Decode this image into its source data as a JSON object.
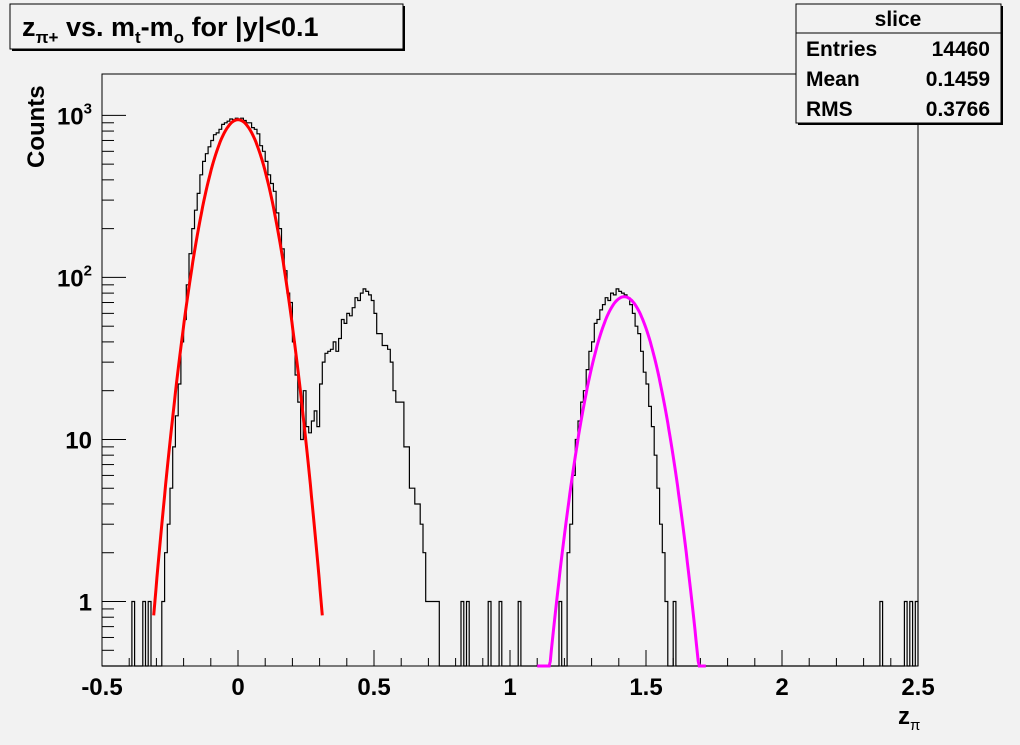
{
  "title": {
    "main": "z",
    "sub": "π+",
    "mid": " vs. m",
    "sub2": "t",
    "dash": "-m",
    "sub3": "o",
    "tail": " for |y|<0.1"
  },
  "stats": {
    "name": "slice",
    "rows": [
      {
        "label": "Entries",
        "value": "14460"
      },
      {
        "label": "Mean",
        "value": "0.1459"
      },
      {
        "label": "RMS",
        "value": "0.3766"
      }
    ]
  },
  "colors": {
    "histogram": "#000000",
    "fit_pi": "#ff0000",
    "fit_p": "#ff00ff",
    "background": "#f2f2f2"
  },
  "chart_data": {
    "type": "line",
    "title": "zπ+ vs. mt-mo for |y|<0.1",
    "xlabel": "zπ",
    "ylabel": "Counts",
    "xlim": [
      -0.5,
      2.5
    ],
    "ylog": true,
    "ymin": 0.4,
    "ymax": 1800,
    "grid": false,
    "x_ticks": [
      {
        "value": -0.5,
        "label": "-0.5"
      },
      {
        "value": 0,
        "label": "0"
      },
      {
        "value": 0.5,
        "label": "0.5"
      },
      {
        "value": 1,
        "label": "1"
      },
      {
        "value": 1.5,
        "label": "1.5"
      },
      {
        "value": 2,
        "label": "2"
      },
      {
        "value": 2.5,
        "label": "2.5"
      }
    ],
    "y_ticks": [
      {
        "value": 1,
        "base": "1",
        "exp": ""
      },
      {
        "value": 10,
        "base": "10",
        "exp": ""
      },
      {
        "value": 100,
        "base": "10",
        "exp": "2"
      },
      {
        "value": 1000,
        "base": "10",
        "exp": "3"
      }
    ],
    "histogram": {
      "name": "slice",
      "bin_width": 0.01,
      "bins": [
        [
          -0.39,
          1
        ],
        [
          -0.35,
          1
        ],
        [
          -0.33,
          1
        ],
        [
          -0.28,
          1
        ],
        [
          -0.27,
          2
        ],
        [
          -0.26,
          3
        ],
        [
          -0.25,
          5
        ],
        [
          -0.24,
          9
        ],
        [
          -0.23,
          14
        ],
        [
          -0.22,
          22
        ],
        [
          -0.21,
          40
        ],
        [
          -0.2,
          55
        ],
        [
          -0.19,
          90
        ],
        [
          -0.18,
          140
        ],
        [
          -0.17,
          200
        ],
        [
          -0.16,
          260
        ],
        [
          -0.15,
          330
        ],
        [
          -0.14,
          430
        ],
        [
          -0.13,
          520
        ],
        [
          -0.12,
          580
        ],
        [
          -0.11,
          640
        ],
        [
          -0.1,
          700
        ],
        [
          -0.09,
          760
        ],
        [
          -0.08,
          780
        ],
        [
          -0.07,
          820
        ],
        [
          -0.06,
          880
        ],
        [
          -0.05,
          900
        ],
        [
          -0.04,
          920
        ],
        [
          -0.03,
          950
        ],
        [
          -0.02,
          940
        ],
        [
          -0.01,
          960
        ],
        [
          0.0,
          950
        ],
        [
          0.01,
          960
        ],
        [
          0.02,
          930
        ],
        [
          0.03,
          900
        ],
        [
          0.04,
          900
        ],
        [
          0.05,
          840
        ],
        [
          0.06,
          820
        ],
        [
          0.07,
          770
        ],
        [
          0.08,
          650
        ],
        [
          0.09,
          600
        ],
        [
          0.1,
          520
        ],
        [
          0.11,
          430
        ],
        [
          0.12,
          380
        ],
        [
          0.13,
          340
        ],
        [
          0.14,
          250
        ],
        [
          0.15,
          200
        ],
        [
          0.16,
          150
        ],
        [
          0.17,
          110
        ],
        [
          0.18,
          80
        ],
        [
          0.19,
          70
        ],
        [
          0.2,
          40
        ],
        [
          0.21,
          25
        ],
        [
          0.22,
          17
        ],
        [
          0.23,
          10
        ],
        [
          0.24,
          20
        ],
        [
          0.25,
          12
        ],
        [
          0.26,
          11
        ],
        [
          0.27,
          13
        ],
        [
          0.28,
          15
        ],
        [
          0.29,
          12
        ],
        [
          0.3,
          22
        ],
        [
          0.31,
          30
        ],
        [
          0.32,
          34
        ],
        [
          0.33,
          35
        ],
        [
          0.34,
          36
        ],
        [
          0.35,
          40
        ],
        [
          0.36,
          35
        ],
        [
          0.37,
          42
        ],
        [
          0.38,
          55
        ],
        [
          0.39,
          52
        ],
        [
          0.4,
          60
        ],
        [
          0.41,
          58
        ],
        [
          0.42,
          65
        ],
        [
          0.43,
          75
        ],
        [
          0.44,
          72
        ],
        [
          0.45,
          80
        ],
        [
          0.46,
          85
        ],
        [
          0.47,
          82
        ],
        [
          0.48,
          78
        ],
        [
          0.49,
          72
        ],
        [
          0.5,
          60
        ],
        [
          0.51,
          45
        ],
        [
          0.52,
          45
        ],
        [
          0.53,
          38
        ],
        [
          0.54,
          38
        ],
        [
          0.55,
          36
        ],
        [
          0.56,
          30
        ],
        [
          0.57,
          20
        ],
        [
          0.58,
          17
        ],
        [
          0.59,
          17
        ],
        [
          0.6,
          17
        ],
        [
          0.61,
          9
        ],
        [
          0.62,
          9
        ],
        [
          0.63,
          5
        ],
        [
          0.64,
          5
        ],
        [
          0.65,
          4
        ],
        [
          0.66,
          4
        ],
        [
          0.67,
          3
        ],
        [
          0.68,
          2
        ],
        [
          0.69,
          1
        ],
        [
          0.7,
          1
        ],
        [
          0.71,
          1
        ],
        [
          0.72,
          1
        ],
        [
          0.73,
          1
        ],
        [
          0.82,
          1
        ],
        [
          0.84,
          1
        ],
        [
          0.92,
          1
        ],
        [
          0.96,
          1
        ],
        [
          1.03,
          1
        ],
        [
          1.18,
          1
        ],
        [
          1.21,
          2
        ],
        [
          1.22,
          3
        ],
        [
          1.23,
          6
        ],
        [
          1.24,
          10
        ],
        [
          1.25,
          13
        ],
        [
          1.26,
          17
        ],
        [
          1.27,
          20
        ],
        [
          1.28,
          27
        ],
        [
          1.29,
          35
        ],
        [
          1.3,
          40
        ],
        [
          1.31,
          52
        ],
        [
          1.32,
          55
        ],
        [
          1.33,
          63
        ],
        [
          1.34,
          68
        ],
        [
          1.35,
          75
        ],
        [
          1.36,
          72
        ],
        [
          1.37,
          80
        ],
        [
          1.38,
          78
        ],
        [
          1.39,
          85
        ],
        [
          1.4,
          82
        ],
        [
          1.41,
          80
        ],
        [
          1.42,
          78
        ],
        [
          1.43,
          75
        ],
        [
          1.44,
          68
        ],
        [
          1.45,
          60
        ],
        [
          1.46,
          50
        ],
        [
          1.47,
          45
        ],
        [
          1.48,
          35
        ],
        [
          1.49,
          26
        ],
        [
          1.5,
          22
        ],
        [
          1.51,
          16
        ],
        [
          1.52,
          12
        ],
        [
          1.53,
          8
        ],
        [
          1.54,
          5
        ],
        [
          1.55,
          3
        ],
        [
          1.56,
          2
        ],
        [
          1.57,
          1
        ],
        [
          1.6,
          1
        ],
        [
          2.36,
          1
        ],
        [
          2.45,
          1
        ],
        [
          2.47,
          1
        ],
        [
          2.49,
          1
        ]
      ]
    },
    "fits": [
      {
        "name": "",
        "color": "#ff0000",
        "amplitude": 940,
        "mean": 0.0,
        "sigma": 0.0826,
        "xmin": -0.31,
        "xmax": 0.31
      },
      {
        "name": "",
        "color": "#ff00ff",
        "amplitude": 76,
        "mean": 1.42,
        "sigma": 0.0845,
        "xmin": 1.1,
        "xmax": 1.72
      }
    ]
  }
}
